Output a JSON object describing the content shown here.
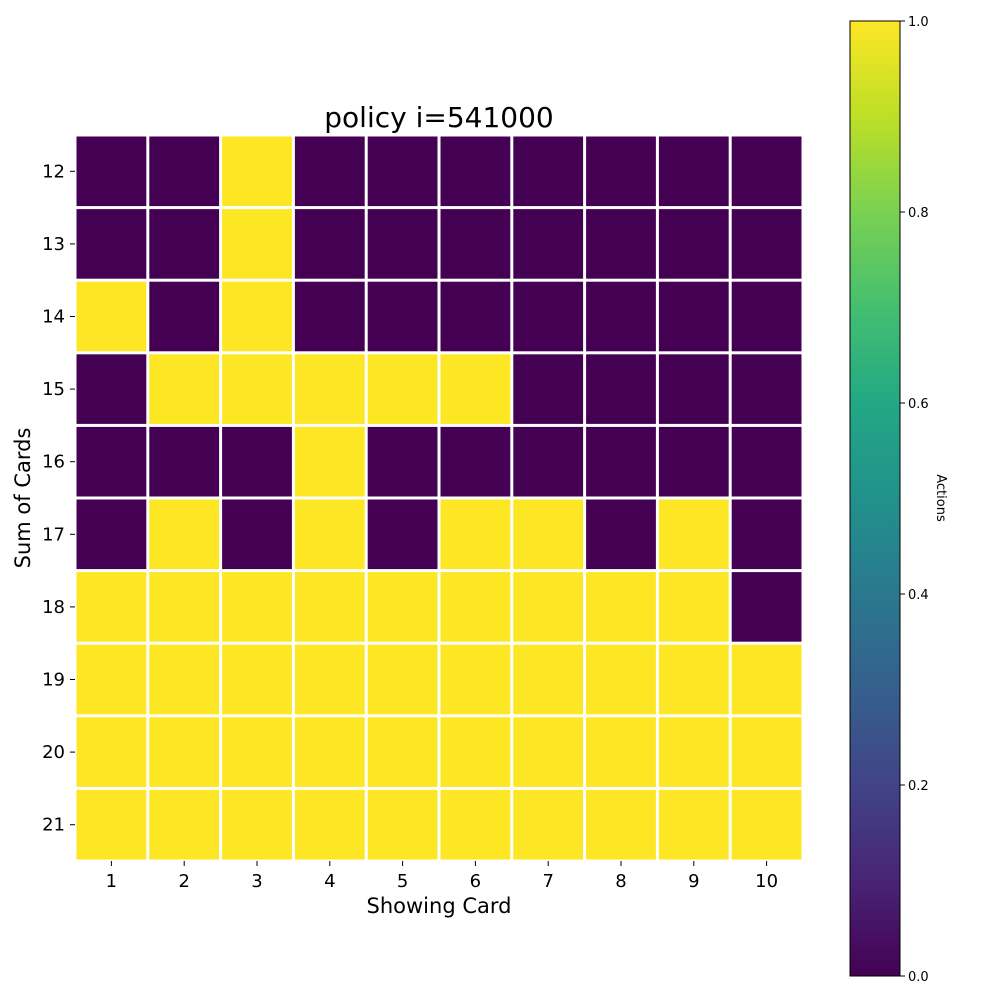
{
  "chart_data": {
    "type": "heatmap",
    "title": "policy i=541000",
    "xlabel": "Showing Card",
    "ylabel": "Sum of Cards",
    "x_categories": [
      "1",
      "2",
      "3",
      "4",
      "5",
      "6",
      "7",
      "8",
      "9",
      "10"
    ],
    "y_categories": [
      "12",
      "13",
      "14",
      "15",
      "16",
      "17",
      "18",
      "19",
      "20",
      "21"
    ],
    "values": [
      [
        0,
        0,
        1,
        0,
        0,
        0,
        0,
        0,
        0,
        0
      ],
      [
        0,
        0,
        1,
        0,
        0,
        0,
        0,
        0,
        0,
        0
      ],
      [
        1,
        0,
        1,
        0,
        0,
        0,
        0,
        0,
        0,
        0
      ],
      [
        0,
        1,
        1,
        1,
        1,
        1,
        0,
        0,
        0,
        0
      ],
      [
        0,
        0,
        0,
        1,
        0,
        0,
        0,
        0,
        0,
        0
      ],
      [
        0,
        1,
        0,
        1,
        0,
        1,
        1,
        0,
        1,
        0
      ],
      [
        1,
        1,
        1,
        1,
        1,
        1,
        1,
        1,
        1,
        0
      ],
      [
        1,
        1,
        1,
        1,
        1,
        1,
        1,
        1,
        1,
        1
      ],
      [
        1,
        1,
        1,
        1,
        1,
        1,
        1,
        1,
        1,
        1
      ],
      [
        1,
        1,
        1,
        1,
        1,
        1,
        1,
        1,
        1,
        1
      ]
    ],
    "colormap": "viridis",
    "value_range": [
      0,
      1
    ],
    "colorbar": {
      "label": "Actions",
      "ticks": [
        "0.0",
        "0.2",
        "0.4",
        "0.6",
        "0.8",
        "1.0"
      ],
      "tick_values": [
        0,
        0.2,
        0.4,
        0.6,
        0.8,
        1.0
      ],
      "position": "right"
    },
    "grid": true,
    "grid_color": "#ffffff"
  }
}
